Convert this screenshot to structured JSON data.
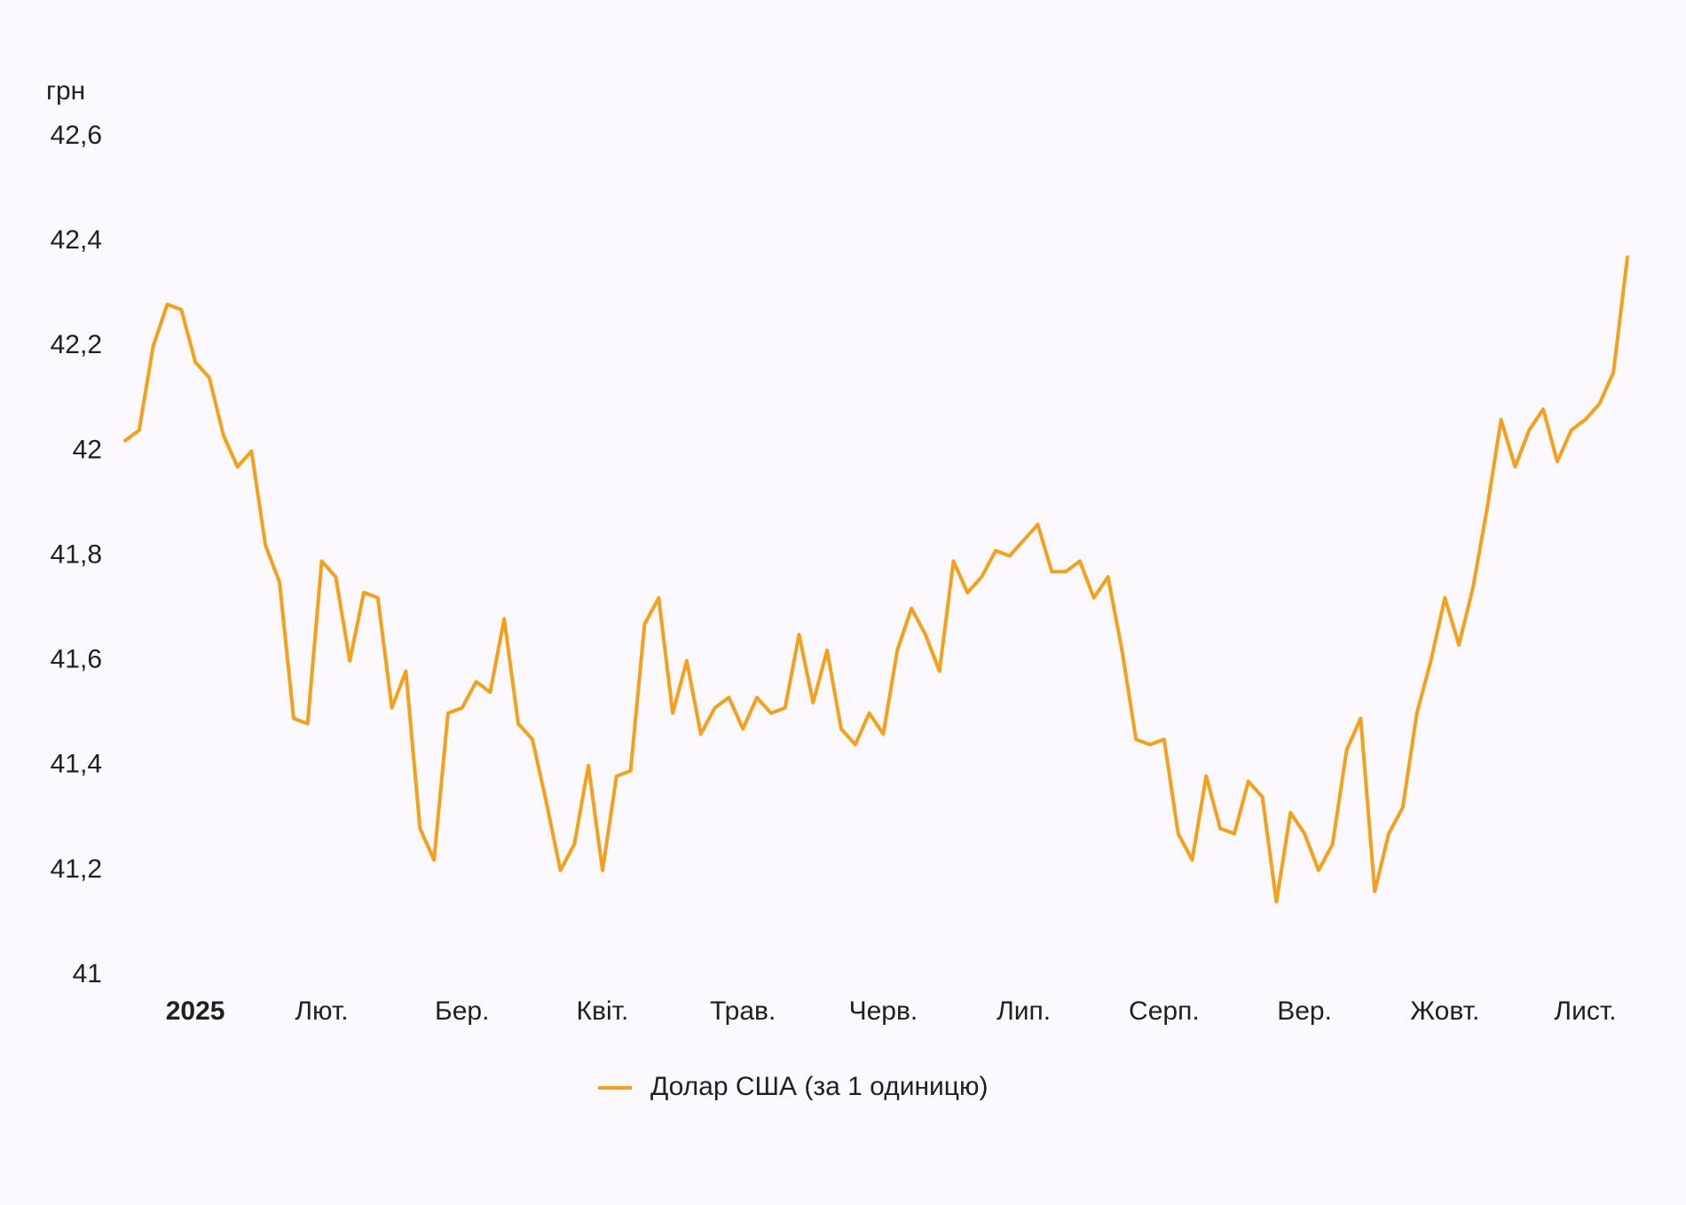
{
  "chart_data": {
    "type": "line",
    "y_label": "грн",
    "categories": [
      null,
      null,
      null,
      null,
      null,
      "2025",
      null,
      null,
      null,
      null,
      null,
      null,
      null,
      null,
      "Лют.",
      null,
      null,
      null,
      null,
      null,
      null,
      null,
      null,
      null,
      "Бер.",
      null,
      null,
      null,
      null,
      null,
      null,
      null,
      null,
      null,
      "Квіт.",
      null,
      null,
      null,
      null,
      null,
      null,
      null,
      null,
      null,
      "Трав.",
      null,
      null,
      null,
      null,
      null,
      null,
      null,
      null,
      null,
      "Черв.",
      null,
      null,
      null,
      null,
      null,
      null,
      null,
      null,
      null,
      "Лип.",
      null,
      null,
      null,
      null,
      null,
      null,
      null,
      null,
      null,
      "Серп.",
      null,
      null,
      null,
      null,
      null,
      null,
      null,
      null,
      null,
      "Вер.",
      null,
      null,
      null,
      null,
      null,
      null,
      null,
      null,
      null,
      "Жовт.",
      null,
      null,
      null,
      null,
      null,
      null,
      null,
      null,
      null,
      "Лист.",
      null,
      null,
      null
    ],
    "series": [
      {
        "name": "Долар США (за 1 одиницю)",
        "color": "#f5a01a",
        "values": [
          42.02,
          42.04,
          42.2,
          42.28,
          42.27,
          42.17,
          42.14,
          42.03,
          41.97,
          42.0,
          41.82,
          41.75,
          41.49,
          41.48,
          41.79,
          41.76,
          41.6,
          41.73,
          41.72,
          41.51,
          41.58,
          41.28,
          41.22,
          41.5,
          41.51,
          41.56,
          41.54,
          41.68,
          41.48,
          41.45,
          41.33,
          41.2,
          41.25,
          41.4,
          41.2,
          41.38,
          41.39,
          41.67,
          41.72,
          41.5,
          41.6,
          41.46,
          41.51,
          41.53,
          41.47,
          41.53,
          41.5,
          41.51,
          41.65,
          41.52,
          41.62,
          41.47,
          41.44,
          41.5,
          41.46,
          41.62,
          41.7,
          41.65,
          41.58,
          41.79,
          41.73,
          41.76,
          41.81,
          41.8,
          41.83,
          41.86,
          41.77,
          41.77,
          41.79,
          41.72,
          41.76,
          41.62,
          41.45,
          41.44,
          41.45,
          41.27,
          41.22,
          41.38,
          41.28,
          41.27,
          41.37,
          41.34,
          41.14,
          41.31,
          41.27,
          41.2,
          41.25,
          41.43,
          41.49,
          41.16,
          41.27,
          41.32,
          41.5,
          41.6,
          41.72,
          41.63,
          41.74,
          41.89,
          42.06,
          41.97,
          42.04,
          42.08,
          41.98,
          42.04,
          42.06,
          42.09,
          42.15,
          42.37
        ]
      }
    ],
    "ylim": [
      41,
      42.6
    ],
    "yticks": [
      41,
      {
        "value": 41.2,
        "label": "41,2"
      },
      {
        "value": 41.4,
        "label": "41,4"
      },
      {
        "value": 41.6,
        "label": "41,6"
      },
      {
        "value": 41.8,
        "label": "41,8"
      },
      42,
      {
        "value": 42.2,
        "label": "42,2"
      },
      {
        "value": 42.4,
        "label": "42,4"
      },
      {
        "value": 42.6,
        "label": "42,6"
      }
    ],
    "grid": false,
    "legend": "bottom"
  }
}
